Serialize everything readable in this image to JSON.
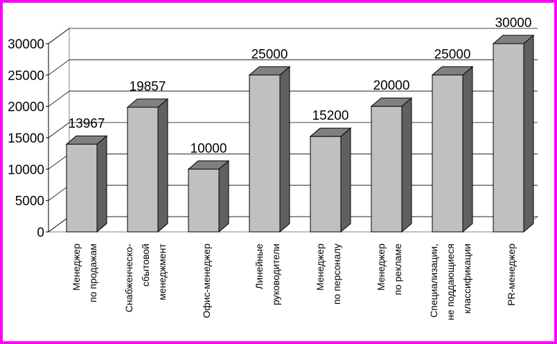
{
  "chart_data": {
    "type": "bar",
    "title": "",
    "xlabel": "",
    "ylabel": "",
    "ylim": [
      0,
      30000
    ],
    "yticks": [
      0,
      5000,
      10000,
      15000,
      20000,
      25000,
      30000
    ],
    "grid": true,
    "legend": "none",
    "style": "3d",
    "colors": {
      "border": "#ff00ff",
      "bar_front": "#c0c0c0",
      "bar_top": "#808080",
      "bar_side": "#606060",
      "gridline": "#000000"
    },
    "categories": [
      [
        "Менеджер",
        "по продажам"
      ],
      [
        "Снабженческо-",
        "сбытовой",
        "менеджмент"
      ],
      [
        "Офис-менеджер"
      ],
      [
        "Линейные",
        "руководители"
      ],
      [
        "Менеджер",
        "по персоналу"
      ],
      [
        "Менеджер",
        "по рекламе"
      ],
      [
        "Специализации,",
        "не поддающиеся",
        "классификации"
      ],
      [
        "PR-менеджер"
      ]
    ],
    "values": [
      13967,
      19857,
      10000,
      25000,
      15200,
      20000,
      25000,
      30000
    ]
  }
}
